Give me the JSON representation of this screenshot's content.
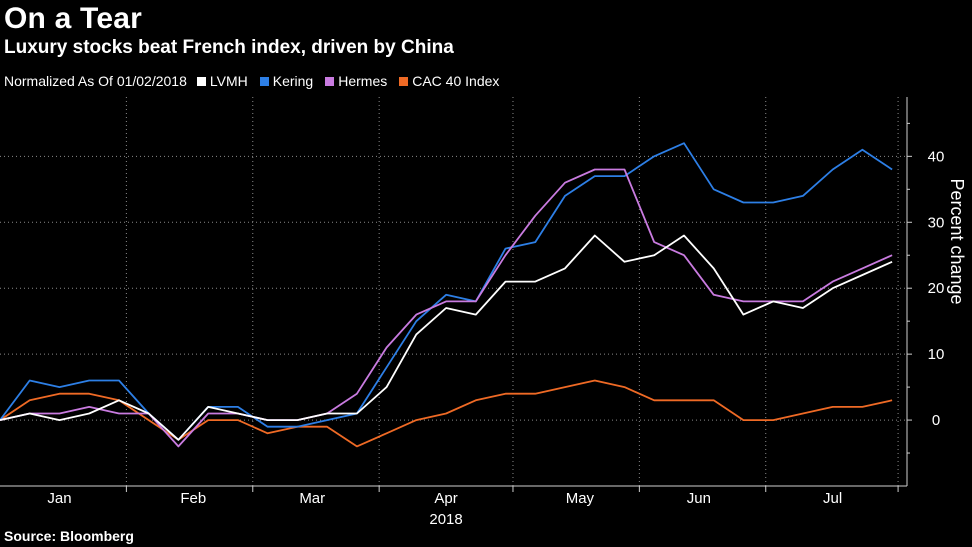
{
  "header": {
    "title": "On a Tear",
    "subtitle": "Luxury stocks beat French index, driven by China"
  },
  "legend": {
    "normalized_label": "Normalized As Of 01/02/2018"
  },
  "footer": {
    "source": "Source: Bloomberg"
  },
  "chart_data": {
    "type": "line",
    "title": "On a Tear",
    "subtitle": "Luxury stocks beat French index, driven by China",
    "xlabel": "2018",
    "ylabel": "Percent change",
    "x_unit": "week index from 2018-01-02 (weekly sample)",
    "x_ticks": [
      {
        "label": "Jan",
        "x": 2
      },
      {
        "label": "Feb",
        "x": 6.5
      },
      {
        "label": "Mar",
        "x": 10.5
      },
      {
        "label": "Apr",
        "x": 15
      },
      {
        "label": "May",
        "x": 19.5
      },
      {
        "label": "Jun",
        "x": 23.5
      },
      {
        "label": "Jul",
        "x": 28
      }
    ],
    "year_label": "2018",
    "y_ticks": [
      0,
      10,
      20,
      30,
      40
    ],
    "ylim": [
      -10,
      49
    ],
    "xlim": [
      0,
      30.5
    ],
    "grid": true,
    "legend_position": "top-left",
    "x": [
      0,
      1,
      2,
      3,
      4,
      5,
      6,
      7,
      8,
      9,
      10,
      11,
      12,
      13,
      14,
      15,
      16,
      17,
      18,
      19,
      20,
      21,
      22,
      23,
      24,
      25,
      26,
      27,
      28,
      29,
      30
    ],
    "series": [
      {
        "name": "LVMH",
        "color": "#ffffff",
        "values": [
          0,
          1,
          0,
          1,
          3,
          1,
          -3,
          2,
          1,
          0,
          0,
          1,
          1,
          5,
          13,
          17,
          16,
          21,
          21,
          23,
          28,
          24,
          25,
          28,
          23,
          16,
          18,
          17,
          20,
          22,
          24
        ]
      },
      {
        "name": "Kering",
        "color": "#2d7fe6",
        "values": [
          0,
          6,
          5,
          6,
          6,
          1,
          -3,
          2,
          2,
          -1,
          -1,
          0,
          1,
          8,
          15,
          19,
          18,
          26,
          27,
          34,
          37,
          37,
          40,
          42,
          35,
          33,
          33,
          34,
          38,
          41,
          38
        ]
      },
      {
        "name": "Hermes",
        "color": "#c97be0",
        "values": [
          0,
          1,
          1,
          2,
          1,
          1,
          -4,
          1,
          1,
          0,
          0,
          1,
          4,
          11,
          16,
          18,
          18,
          25,
          31,
          36,
          38,
          38,
          27,
          25,
          19,
          18,
          18,
          18,
          21,
          23,
          25
        ]
      },
      {
        "name": "CAC 40 Index",
        "color": "#ef6a25",
        "values": [
          0,
          3,
          4,
          4,
          3,
          0,
          -3,
          0,
          0,
          -2,
          -1,
          -1,
          -4,
          -2,
          0,
          1,
          3,
          4,
          4,
          5,
          6,
          5,
          3,
          3,
          3,
          0,
          0,
          1,
          2,
          2,
          3
        ]
      }
    ]
  }
}
